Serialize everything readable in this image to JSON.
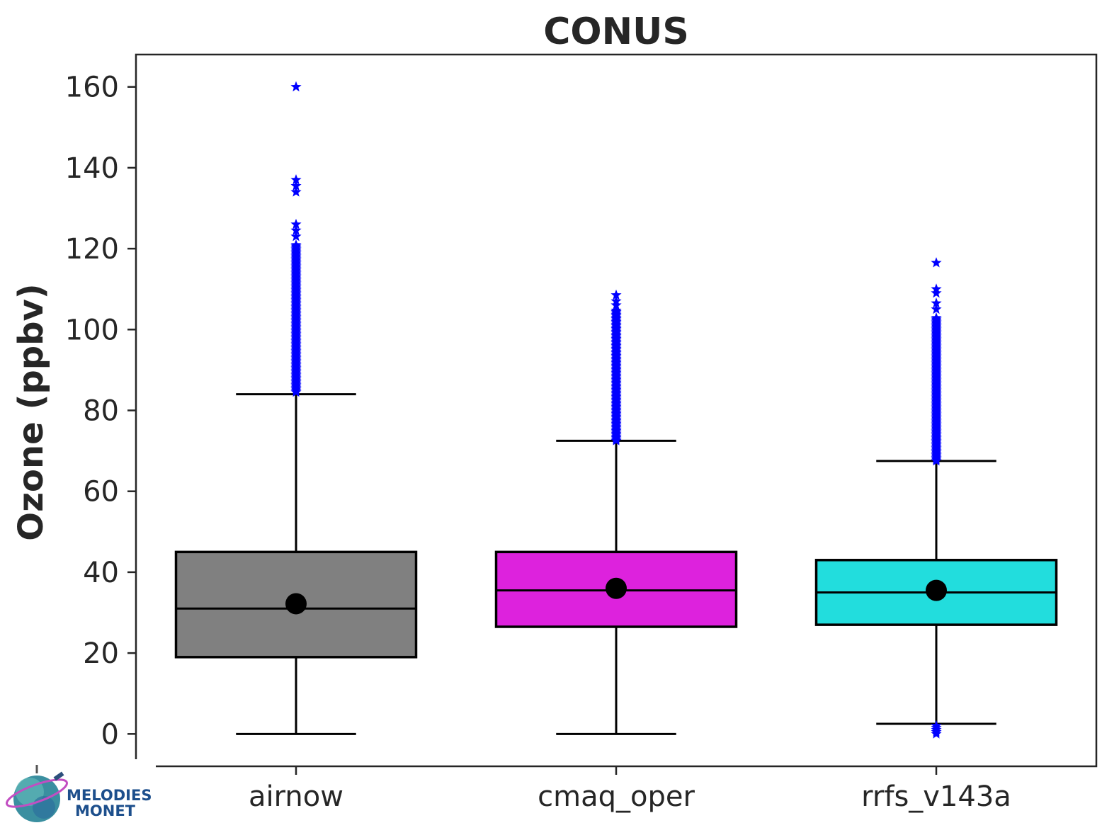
{
  "chart_data": {
    "type": "box",
    "title": "CONUS",
    "xlabel": "",
    "ylabel": "Ozone (ppbv)",
    "ylim": [
      -8,
      168
    ],
    "yticks": [
      0,
      20,
      40,
      60,
      80,
      100,
      120,
      140,
      160
    ],
    "grid": false,
    "categories": [
      "airnow",
      "cmaq_oper",
      "rrfs_v143a"
    ],
    "series": [
      {
        "category": "airnow",
        "color": "#808080",
        "whisker_low": 0,
        "q1": 19,
        "median": 31,
        "q3": 45,
        "whisker_high": 84,
        "mean": 32.2,
        "outlier_range": [
          84.5,
          121
        ],
        "outliers_extra": [
          123,
          124.5,
          126,
          134,
          135.5,
          137,
          160
        ]
      },
      {
        "category": "cmaq_oper",
        "color": "#dd22dd",
        "whisker_low": 0,
        "q1": 26.5,
        "median": 35.5,
        "q3": 45,
        "whisker_high": 72.5,
        "mean": 36,
        "outlier_range": [
          72.5,
          105
        ],
        "outliers_extra": [
          106,
          107,
          108.5
        ]
      },
      {
        "category": "rrfs_v143a",
        "color": "#22dddd",
        "whisker_low": 2.5,
        "q1": 27,
        "median": 35,
        "q3": 43,
        "whisker_high": 67.5,
        "mean": 35.5,
        "outlier_range": [
          67.5,
          103
        ],
        "outliers_extra": [
          105,
          106.5,
          109,
          110,
          116.5
        ],
        "low_outliers": [
          0,
          0.5,
          1,
          1.5,
          2
        ]
      }
    ],
    "outlier_marker": "star",
    "outlier_color": "#0000ff",
    "mean_marker_color": "#000000"
  },
  "logo": {
    "line1": "MELODIES",
    "line2": "MONET"
  }
}
